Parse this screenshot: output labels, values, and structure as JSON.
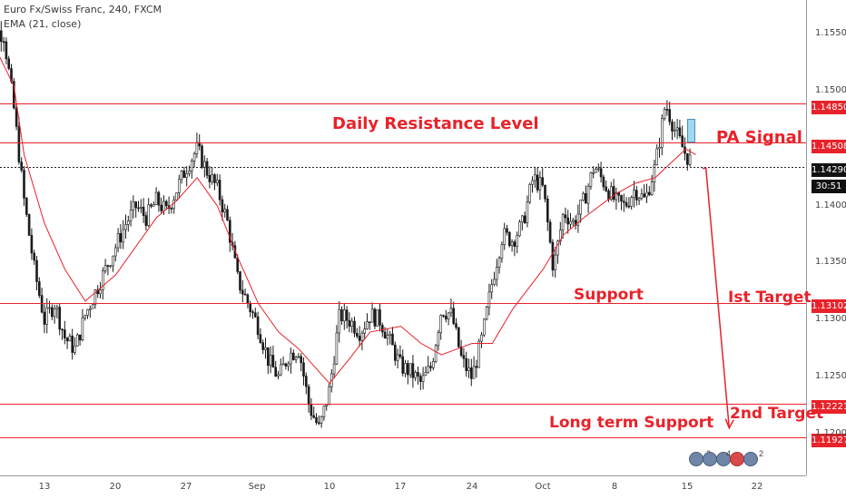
{
  "header": {
    "symbol_line": "Euro Fx/Swiss Franc, 240, FXCM",
    "indicator_line": "EMA (21, close)"
  },
  "colors": {
    "levels": "#e8222a",
    "ema": "#e8222a",
    "candle": "#1a1a1a",
    "signal_candle": "#9fd8f0"
  },
  "annotations": {
    "resistance": "Daily Resistance Level",
    "pa_signal": "PA Signal",
    "support": "Support",
    "first_target": "Ist Target",
    "second_target": "2nd Target",
    "long_term_support": "Long term Support"
  },
  "price_badges": {
    "resistance": "1.14850",
    "pa_signal": "1.14508",
    "current": "1.14290",
    "countdown": "30:51",
    "first_target": "1.13102",
    "second_target": "1.12221",
    "long_term": "1.11927"
  },
  "y_ticks": [
    "1.15500",
    "1.15000",
    "1.14000",
    "1.13500",
    "1.13000",
    "1.12500",
    "1.12000"
  ],
  "x_ticks": [
    "13",
    "20",
    "27",
    "Sep",
    "10",
    "17",
    "24",
    "Oct",
    "8",
    "15",
    "22"
  ],
  "events": [
    "2",
    "4",
    "2"
  ],
  "chart_data": {
    "type": "line",
    "title": "Euro Fx/Swiss Franc, 240, FXCM",
    "xlabel": "",
    "ylabel": "",
    "ylim": [
      1.1172,
      1.1582
    ],
    "grid": false,
    "levels": [
      {
        "label": "Daily Resistance Level",
        "y": 1.1485
      },
      {
        "label": "PA Signal",
        "y": 1.14508
      },
      {
        "label": "Support / Ist Target",
        "y": 1.13102
      },
      {
        "label": "2nd Target",
        "y": 1.12221
      },
      {
        "label": "Long term Support",
        "y": 1.11927
      }
    ],
    "current_price": 1.1429,
    "series": [
      {
        "name": "EMA (21, close)",
        "points": [
          [
            "Aug 07",
            1.1555
          ],
          [
            "Aug 10",
            1.15
          ],
          [
            "Aug 11",
            1.144
          ],
          [
            "Aug 13",
            1.138
          ],
          [
            "Aug 15",
            1.134
          ],
          [
            "Aug 17",
            1.1312
          ],
          [
            "Aug 20",
            1.1335
          ],
          [
            "Aug 22",
            1.136
          ],
          [
            "Aug 24",
            1.1385
          ],
          [
            "Aug 26",
            1.14
          ],
          [
            "Aug 28",
            1.142
          ],
          [
            "Aug 30",
            1.1395
          ],
          [
            "Sep 01",
            1.135
          ],
          [
            "Sep 03",
            1.131
          ],
          [
            "Sep 05",
            1.1285
          ],
          [
            "Sep 07",
            1.127
          ],
          [
            "Sep 10",
            1.124
          ],
          [
            "Sep 12",
            1.1262
          ],
          [
            "Sep 14",
            1.1285
          ],
          [
            "Sep 17",
            1.129
          ],
          [
            "Sep 19",
            1.1275
          ],
          [
            "Sep 21",
            1.1265
          ],
          [
            "Sep 24",
            1.1275
          ],
          [
            "Sep 26",
            1.1275
          ],
          [
            "Sep 28",
            1.1305
          ],
          [
            "Oct 01",
            1.134
          ],
          [
            "Oct 03",
            1.137
          ],
          [
            "Oct 05",
            1.1385
          ],
          [
            "Oct 08",
            1.1405
          ],
          [
            "Oct 10",
            1.1415
          ],
          [
            "Oct 12",
            1.142
          ],
          [
            "Oct 15",
            1.1445
          ],
          [
            "Oct 16",
            1.144
          ]
        ]
      },
      {
        "name": "price (close)",
        "points": [
          [
            "Aug 07",
            1.1555
          ],
          [
            "Aug 09",
            1.1545
          ],
          [
            "Aug 10",
            1.148
          ],
          [
            "Aug 11",
            1.14
          ],
          [
            "Aug 12",
            1.134
          ],
          [
            "Aug 13",
            1.1295
          ],
          [
            "Aug 14",
            1.131
          ],
          [
            "Aug 15",
            1.128
          ],
          [
            "Aug 16",
            1.127
          ],
          [
            "Aug 17",
            1.13
          ],
          [
            "Aug 20",
            1.136
          ],
          [
            "Aug 21",
            1.138
          ],
          [
            "Aug 22",
            1.1395
          ],
          [
            "Aug 23",
            1.1385
          ],
          [
            "Aug 24",
            1.14
          ],
          [
            "Aug 25",
            1.139
          ],
          [
            "Aug 27",
            1.143
          ],
          [
            "Aug 28",
            1.1445
          ],
          [
            "Aug 29",
            1.1425
          ],
          [
            "Aug 30",
            1.141
          ],
          [
            "Aug 31",
            1.138
          ],
          [
            "Sep 01",
            1.133
          ],
          [
            "Sep 03",
            1.129
          ],
          [
            "Sep 04",
            1.126
          ],
          [
            "Sep 05",
            1.1245
          ],
          [
            "Sep 06",
            1.1265
          ],
          [
            "Sep 07",
            1.127
          ],
          [
            "Sep 08",
            1.122
          ],
          [
            "Sep 09",
            1.12
          ],
          [
            "Sep 10",
            1.1235
          ],
          [
            "Sep 11",
            1.13
          ],
          [
            "Sep 12",
            1.1295
          ],
          [
            "Sep 13",
            1.1285
          ],
          [
            "Sep 14",
            1.13
          ],
          [
            "Sep 15",
            1.1295
          ],
          [
            "Sep 17",
            1.1255
          ],
          [
            "Sep 18",
            1.125
          ],
          [
            "Sep 19",
            1.124
          ],
          [
            "Sep 20",
            1.1255
          ],
          [
            "Sep 21",
            1.1305
          ],
          [
            "Sep 22",
            1.13
          ],
          [
            "Sep 23",
            1.126
          ],
          [
            "Sep 24",
            1.1245
          ],
          [
            "Sep 25",
            1.128
          ],
          [
            "Sep 26",
            1.133
          ],
          [
            "Sep 27",
            1.137
          ],
          [
            "Sep 28",
            1.1365
          ],
          [
            "Sep 29",
            1.138
          ],
          [
            "Sep 30",
            1.142
          ],
          [
            "Oct 01",
            1.141
          ],
          [
            "Oct 02",
            1.134
          ],
          [
            "Oct 03",
            1.139
          ],
          [
            "Oct 04",
            1.138
          ],
          [
            "Oct 05",
            1.14
          ],
          [
            "Oct 06",
            1.143
          ],
          [
            "Oct 08",
            1.14
          ],
          [
            "Oct 09",
            1.1395
          ],
          [
            "Oct 10",
            1.141
          ],
          [
            "Oct 11",
            1.14
          ],
          [
            "Oct 12",
            1.143
          ],
          [
            "Oct 13",
            1.1485
          ],
          [
            "Oct 14",
            1.146
          ],
          [
            "Oct 15",
            1.144
          ],
          [
            "Oct 16",
            1.1429
          ]
        ]
      }
    ],
    "projection": {
      "from": [
        "Oct 16",
        1.1429
      ],
      "to": [
        "Oct 19",
        1.1201
      ]
    }
  }
}
